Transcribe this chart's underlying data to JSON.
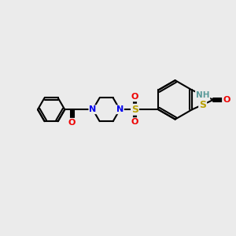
{
  "bg_color": "#ebebeb",
  "bond_color": "#000000",
  "bond_width": 1.5,
  "atom_colors": {
    "S": "#b8a000",
    "N": "#0000ee",
    "O": "#ee0000",
    "H": "#5a9a9a",
    "C": "#000000"
  },
  "font_size": 8,
  "fig_size": [
    3.0,
    3.0
  ],
  "dpi": 100,
  "xlim": [
    -0.5,
    8.5
  ],
  "ylim": [
    -1.5,
    6.5
  ]
}
